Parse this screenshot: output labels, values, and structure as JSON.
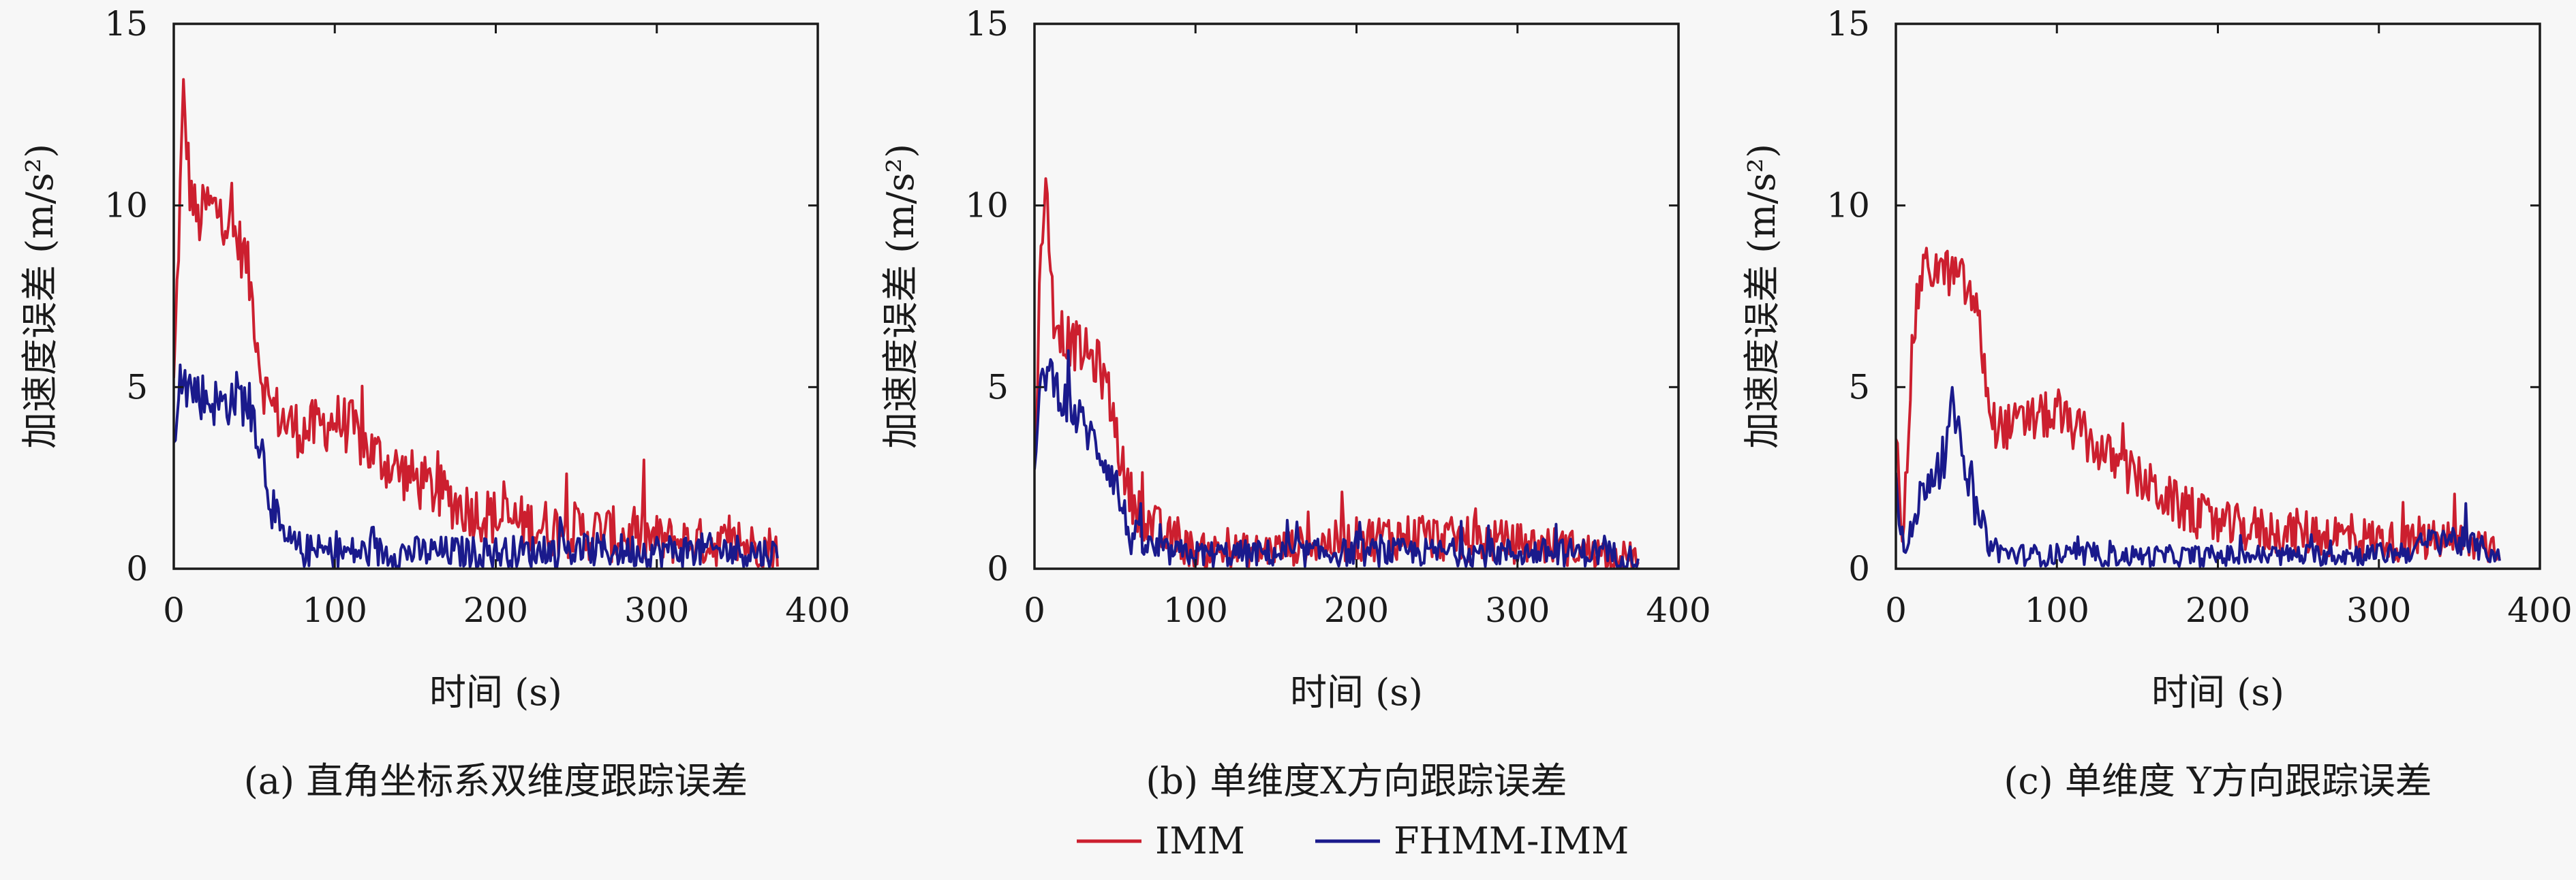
{
  "legend": [
    {
      "name": "IMM",
      "color": "#cc1f2f"
    },
    {
      "name": "FHMM-IMM",
      "color": "#1a1a8c"
    }
  ],
  "chart_data": [
    {
      "type": "line",
      "caption": "(a) 直角坐标系双维度跟踪误差",
      "xlabel": "时间 (s)",
      "ylabel": "加速度误差 (m/s²)",
      "xlim": [
        0,
        400
      ],
      "ylim": [
        0,
        15
      ],
      "xticks": [
        "0",
        "100",
        "200",
        "300",
        "400"
      ],
      "yticks": [
        "0",
        "5",
        "10",
        "15"
      ],
      "x_end": 375,
      "series": [
        {
          "name": "IMM",
          "color": "#cc1f2f",
          "noise": 0.8,
          "points": [
            [
              0,
              5
            ],
            [
              3,
              9
            ],
            [
              6,
              13
            ],
            [
              10,
              10.5
            ],
            [
              15,
              9.5
            ],
            [
              20,
              10
            ],
            [
              30,
              9.8
            ],
            [
              40,
              9
            ],
            [
              45,
              8.5
            ],
            [
              50,
              7
            ],
            [
              55,
              5.2
            ],
            [
              60,
              4.5
            ],
            [
              70,
              4
            ],
            [
              80,
              3.8
            ],
            [
              90,
              3.9
            ],
            [
              100,
              4.1
            ],
            [
              110,
              3.9
            ],
            [
              120,
              3.3
            ],
            [
              140,
              2.7
            ],
            [
              160,
              2.2
            ],
            [
              180,
              1.7
            ],
            [
              200,
              1.4
            ],
            [
              220,
              1.2
            ],
            [
              240,
              1.1
            ],
            [
              260,
              1
            ],
            [
              280,
              0.9
            ],
            [
              300,
              0.8
            ],
            [
              320,
              0.75
            ],
            [
              340,
              0.7
            ],
            [
              360,
              0.65
            ],
            [
              375,
              0.6
            ]
          ]
        },
        {
          "name": "FHMM-IMM",
          "color": "#1a1a8c",
          "noise": 0.7,
          "points": [
            [
              0,
              3
            ],
            [
              5,
              5.2
            ],
            [
              10,
              5
            ],
            [
              20,
              4.7
            ],
            [
              30,
              4.5
            ],
            [
              40,
              4.8
            ],
            [
              50,
              4.2
            ],
            [
              55,
              3.2
            ],
            [
              60,
              2
            ],
            [
              65,
              1
            ],
            [
              70,
              0.7
            ],
            [
              80,
              0.5
            ],
            [
              100,
              0.45
            ],
            [
              150,
              0.45
            ],
            [
              200,
              0.45
            ],
            [
              250,
              0.5
            ],
            [
              300,
              0.5
            ],
            [
              350,
              0.5
            ],
            [
              375,
              0.4
            ]
          ]
        }
      ]
    },
    {
      "type": "line",
      "caption": "(b) 单维度X方向跟踪误差",
      "xlabel": "时间 (s)",
      "ylabel": "加速度误差 (m/s²)",
      "xlim": [
        0,
        400
      ],
      "ylim": [
        0,
        15
      ],
      "xticks": [
        "0",
        "100",
        "200",
        "300",
        "400"
      ],
      "yticks": [
        "0",
        "5",
        "10",
        "15"
      ],
      "x_end": 375,
      "series": [
        {
          "name": "IMM",
          "color": "#cc1f2f",
          "noise": 0.7,
          "points": [
            [
              0,
              2.5
            ],
            [
              4,
              9
            ],
            [
              7,
              10.5
            ],
            [
              12,
              7
            ],
            [
              20,
              6.3
            ],
            [
              30,
              6
            ],
            [
              40,
              5.6
            ],
            [
              45,
              5
            ],
            [
              50,
              4
            ],
            [
              55,
              2.7
            ],
            [
              60,
              2
            ],
            [
              70,
              1.3
            ],
            [
              80,
              0.9
            ],
            [
              90,
              0.7
            ],
            [
              100,
              0.5
            ],
            [
              140,
              0.5
            ],
            [
              160,
              0.6
            ],
            [
              200,
              0.8
            ],
            [
              220,
              0.9
            ],
            [
              240,
              0.9
            ],
            [
              260,
              0.8
            ],
            [
              280,
              0.8
            ],
            [
              300,
              0.7
            ],
            [
              330,
              0.6
            ],
            [
              360,
              0.4
            ],
            [
              375,
              0.3
            ]
          ]
        },
        {
          "name": "FHMM-IMM",
          "color": "#1a1a8c",
          "noise": 0.6,
          "points": [
            [
              0,
              2.5
            ],
            [
              5,
              5.5
            ],
            [
              10,
              5.4
            ],
            [
              20,
              4.5
            ],
            [
              30,
              4
            ],
            [
              40,
              3.3
            ],
            [
              50,
              2.5
            ],
            [
              55,
              1.5
            ],
            [
              60,
              0.9
            ],
            [
              70,
              0.6
            ],
            [
              80,
              0.45
            ],
            [
              100,
              0.4
            ],
            [
              200,
              0.45
            ],
            [
              300,
              0.45
            ],
            [
              350,
              0.45
            ],
            [
              375,
              0.3
            ]
          ]
        }
      ]
    },
    {
      "type": "line",
      "caption": "(c) 单维度 Y方向跟踪误差",
      "xlabel": "时间 (s)",
      "ylabel": "加速度误差 (m/s²)",
      "xlim": [
        0,
        400
      ],
      "ylim": [
        0,
        15
      ],
      "xticks": [
        "0",
        "100",
        "200",
        "300",
        "400"
      ],
      "yticks": [
        "0",
        "5",
        "10",
        "15"
      ],
      "x_end": 375,
      "series": [
        {
          "name": "IMM",
          "color": "#cc1f2f",
          "noise": 0.65,
          "points": [
            [
              0,
              4
            ],
            [
              3,
              0.8
            ],
            [
              6,
              2
            ],
            [
              10,
              6
            ],
            [
              15,
              8
            ],
            [
              20,
              8.3
            ],
            [
              30,
              8.2
            ],
            [
              40,
              8
            ],
            [
              50,
              7.2
            ],
            [
              55,
              5.5
            ],
            [
              60,
              4
            ],
            [
              70,
              3.9
            ],
            [
              80,
              4
            ],
            [
              90,
              4.2
            ],
            [
              100,
              4.2
            ],
            [
              110,
              3.9
            ],
            [
              120,
              3.5
            ],
            [
              140,
              2.8
            ],
            [
              160,
              2.2
            ],
            [
              180,
              1.6
            ],
            [
              200,
              1.2
            ],
            [
              220,
              1.1
            ],
            [
              240,
              1
            ],
            [
              260,
              1
            ],
            [
              280,
              0.9
            ],
            [
              300,
              0.8
            ],
            [
              320,
              0.7
            ],
            [
              340,
              0.8
            ],
            [
              360,
              0.7
            ],
            [
              375,
              0.6
            ]
          ]
        },
        {
          "name": "FHMM-IMM",
          "color": "#1a1a8c",
          "noise": 0.5,
          "points": [
            [
              0,
              3
            ],
            [
              3,
              1
            ],
            [
              6,
              0.4
            ],
            [
              10,
              1
            ],
            [
              15,
              2
            ],
            [
              20,
              2.5
            ],
            [
              30,
              2.8
            ],
            [
              35,
              4.5
            ],
            [
              40,
              3.5
            ],
            [
              45,
              2.5
            ],
            [
              50,
              1.5
            ],
            [
              55,
              1
            ],
            [
              60,
              0.6
            ],
            [
              70,
              0.4
            ],
            [
              100,
              0.35
            ],
            [
              200,
              0.35
            ],
            [
              300,
              0.4
            ],
            [
              320,
              0.5
            ],
            [
              340,
              0.9
            ],
            [
              360,
              0.6
            ],
            [
              375,
              0.4
            ]
          ]
        }
      ]
    }
  ]
}
